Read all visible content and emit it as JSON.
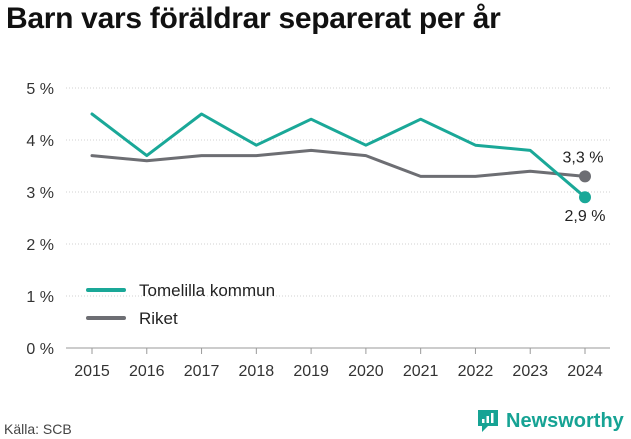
{
  "title": "Barn vars föräldrar separerat per år",
  "source": "Källa: SCB",
  "brand": {
    "name": "Newsworthy",
    "icon": "newsworthy-logo-icon"
  },
  "colors": {
    "series_a": "#1aa898",
    "series_b": "#6d6e73",
    "grid": "#d0d0d0",
    "brand": "#16a394"
  },
  "chart_data": {
    "type": "line",
    "x": [
      "2015",
      "2016",
      "2017",
      "2018",
      "2019",
      "2020",
      "2021",
      "2022",
      "2023",
      "2024"
    ],
    "y_ticks": [
      "0 %",
      "1 %",
      "2 %",
      "3 %",
      "4 %",
      "5 %"
    ],
    "ylim": [
      0,
      5
    ],
    "grid": true,
    "legend_placement": "bottom-left",
    "series": [
      {
        "name": "Tomelilla kommun",
        "values": [
          4.5,
          3.7,
          4.5,
          3.9,
          4.4,
          3.9,
          4.4,
          3.9,
          3.8,
          2.9
        ],
        "end_label": "2,9 %"
      },
      {
        "name": "Riket",
        "values": [
          3.7,
          3.6,
          3.7,
          3.7,
          3.8,
          3.7,
          3.3,
          3.3,
          3.4,
          3.3
        ],
        "end_label": "3,3 %"
      }
    ]
  }
}
